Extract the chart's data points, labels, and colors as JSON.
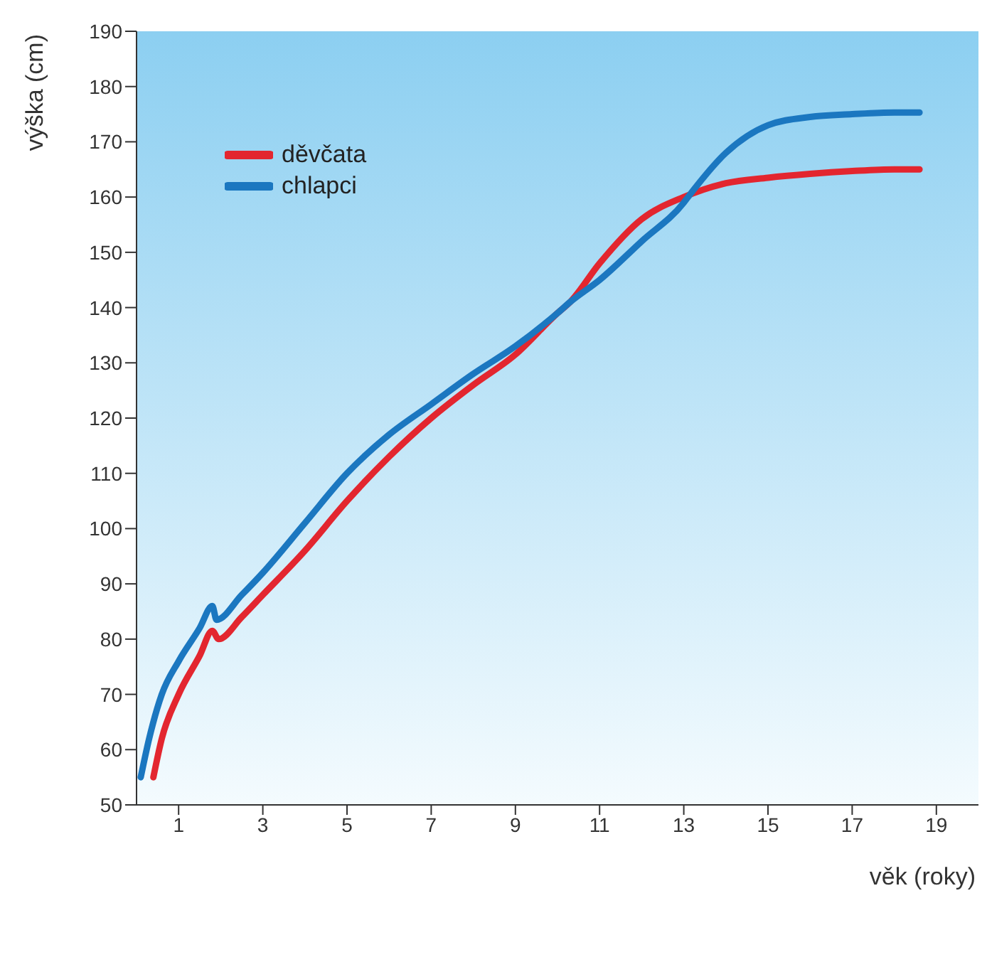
{
  "chart_data": {
    "type": "line",
    "xlabel": "věk (roky)",
    "ylabel": "výška (cm)",
    "xlim": [
      0,
      20
    ],
    "xticks": [
      1,
      3,
      5,
      7,
      9,
      11,
      13,
      15,
      17,
      19
    ],
    "ylim": [
      50,
      190
    ],
    "yticks": [
      50,
      60,
      70,
      80,
      90,
      100,
      110,
      120,
      130,
      140,
      150,
      160,
      170,
      180,
      190
    ],
    "legend": "top left",
    "marker": "none",
    "line_style": "solid",
    "series": [
      {
        "name": "děvčata",
        "color": "#e3262f",
        "x": [
          0.4,
          0.6,
          1,
          1.5,
          1.8,
          1.95,
          2.5,
          3,
          4,
          5,
          6,
          7,
          8,
          9,
          10,
          10.3,
          11,
          12,
          13,
          14,
          15,
          16,
          17,
          18,
          18.6
        ],
        "values": [
          55,
          62,
          70,
          77,
          81.5,
          80,
          84,
          88,
          96,
          105,
          113,
          120,
          126,
          131.5,
          139,
          141,
          148,
          156,
          160,
          162.5,
          163.5,
          164.2,
          164.7,
          165,
          165
        ]
      },
      {
        "name": "chlapci",
        "color": "#1b77c0",
        "x": [
          0.1,
          0.3,
          0.6,
          1,
          1.5,
          1.8,
          1.9,
          2.5,
          3,
          4,
          5,
          6,
          7,
          8,
          9,
          10,
          10.3,
          11,
          12,
          13,
          13.1,
          14,
          15,
          16,
          17,
          18,
          18.6
        ],
        "values": [
          55,
          62,
          70,
          76,
          82,
          86,
          83.5,
          88,
          92,
          101,
          110,
          117,
          122.5,
          128,
          133,
          139,
          141,
          145,
          152,
          159,
          160,
          168,
          173,
          174.5,
          175,
          175.3,
          175.3
        ]
      }
    ]
  }
}
